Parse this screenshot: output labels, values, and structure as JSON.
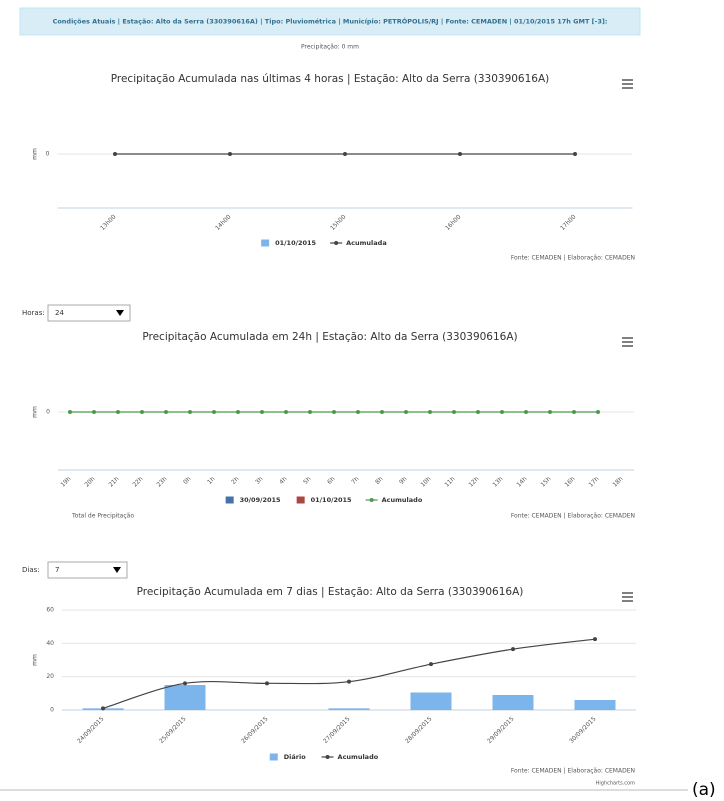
{
  "header": {
    "status": "Condições Atuais | Estação: Alto da Serra (330390616A) | Tipo: Pluviométrica | Município: PETRÓPOLIS/RJ | Fonte: CEMADEN | 01/10/2015 17h GMT [-3]:",
    "precipitation": "Precipitação: 0 mm"
  },
  "controls": [
    {
      "label": "Horas:",
      "value": "24"
    },
    {
      "label": "Dias:",
      "value": "7"
    }
  ],
  "chart_data": [
    {
      "type": "combo",
      "title": "Precipitação Acumulada nas últimas 4 horas | Estação: Alto da Serra (330390616A)",
      "y_axis_label": "mm",
      "yticks": [
        0
      ],
      "grid": true,
      "categories": [
        "13h00",
        "14h00",
        "15h00",
        "16h00",
        "17h00"
      ],
      "series": [
        {
          "name": "01/10/2015",
          "type": "column",
          "color": "#7cb5ec",
          "values": [
            0,
            0,
            0,
            0,
            0
          ]
        },
        {
          "name": "Acumulada",
          "type": "line",
          "color": "#434348",
          "values": [
            0,
            0,
            0,
            0,
            0
          ]
        }
      ],
      "credits": "Fonte: CEMADEN | Elaboração: CEMADEN"
    },
    {
      "type": "combo",
      "title": "Precipitação Acumulada em 24h | Estação: Alto da Serra (330390616A)",
      "y_axis_label": "mm",
      "yticks": [
        0
      ],
      "grid": true,
      "categories": [
        "19h",
        "20h",
        "21h",
        "22h",
        "23h",
        "0h",
        "1h",
        "2h",
        "3h",
        "4h",
        "5h",
        "6h",
        "7h",
        "8h",
        "9h",
        "10h",
        "11h",
        "12h",
        "13h",
        "14h",
        "15h",
        "16h",
        "17h",
        "18h"
      ],
      "series": [
        {
          "name": "30/09/2015",
          "type": "column",
          "color": "#4572a7",
          "values": [
            0,
            0,
            0,
            0,
            0,
            null,
            null,
            null,
            null,
            null,
            null,
            null,
            null,
            null,
            null,
            null,
            null,
            null,
            null,
            null,
            null,
            null,
            null,
            null
          ]
        },
        {
          "name": "01/10/2015",
          "type": "column",
          "color": "#aa4643",
          "values": [
            null,
            null,
            null,
            null,
            null,
            0,
            0,
            0,
            0,
            0,
            0,
            0,
            0,
            0,
            0,
            0,
            0,
            0,
            0,
            0,
            0,
            0,
            0,
            null
          ]
        },
        {
          "name": "Acumulado",
          "type": "line",
          "color": "#4d9a4d",
          "values": [
            0,
            0,
            0,
            0,
            0,
            0,
            0,
            0,
            0,
            0,
            0,
            0,
            0,
            0,
            0,
            0,
            0,
            0,
            0,
            0,
            0,
            0,
            0,
            null
          ]
        }
      ],
      "note": "Total de Precipitação",
      "credits": "Fonte: CEMADEN | Elaboração: CEMADEN"
    },
    {
      "type": "combo",
      "title": "Precipitação Acumulada em 7 dias | Estação: Alto da Serra (330390616A)",
      "y_axis_label": "mm",
      "ylim": [
        0,
        60
      ],
      "yticks": [
        0,
        20,
        40,
        60
      ],
      "grid": true,
      "smooth": true,
      "categories": [
        "24/09/2015",
        "25/09/2015",
        "26/09/2015",
        "27/09/2015",
        "28/09/2015",
        "29/09/2015",
        "30/09/2015"
      ],
      "series": [
        {
          "name": "Diário",
          "type": "column",
          "color": "#7cb5ec",
          "values": [
            1,
            15,
            0,
            1,
            10.5,
            9,
            6
          ]
        },
        {
          "name": "Acumulado",
          "type": "line",
          "color": "#434348",
          "values": [
            1,
            16,
            16,
            17,
            27.5,
            36.5,
            42.5
          ]
        }
      ],
      "credits": "Fonte: CEMADEN | Elaboração: CEMADEN",
      "vendor_credit": "Highcharts.com"
    }
  ],
  "figure_label": "(a)"
}
